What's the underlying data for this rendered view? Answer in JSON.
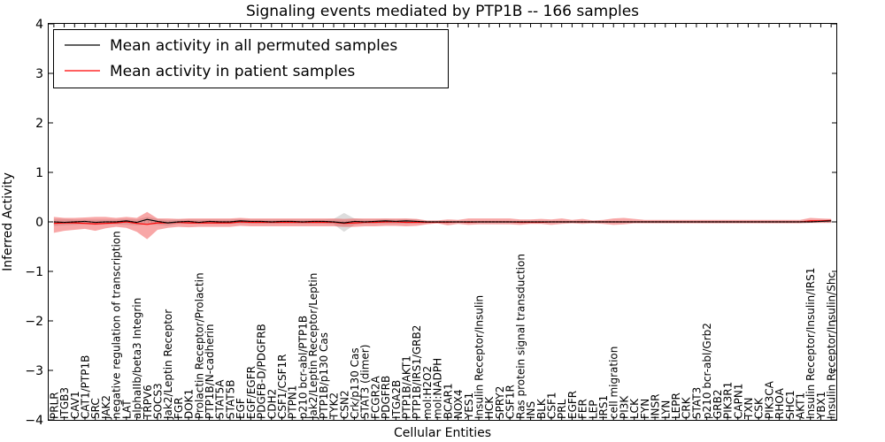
{
  "chart_data": {
    "type": "line",
    "title": "Signaling events mediated by PTP1B -- 166 samples",
    "xlabel": "Cellular Entities",
    "ylabel": "Inferred Activity",
    "ylim": [
      -4,
      4
    ],
    "yticks": [
      -4,
      -3,
      -2,
      -1,
      0,
      1,
      2,
      3,
      4
    ],
    "ytick_labels": [
      "−4",
      "−3",
      "−2",
      "−1",
      "0",
      "1",
      "2",
      "3",
      "4"
    ],
    "legend_location": "top-left",
    "categories": [
      "PRLR",
      "ITGB3",
      "CAV1",
      "CAT1/PTP1B",
      "SRC",
      "JAK2",
      "negative regulation of transcription",
      "LAT",
      "alphaIIb/beta3 Integrin",
      "TRPV6",
      "SOCS3",
      "Jak2/Leptin Receptor",
      "FGR",
      "DOK1",
      "Prolactin Receptor/Prolactin",
      "PTP1B/N-cadherin",
      "STAT5A",
      "STAT5B",
      "EGF",
      "EGF/EGFR",
      "PDGFB-D/PDGFRB",
      "CDH2",
      "CSF1/CSF1R",
      "PTPN1",
      "p210 bcr-abl/PTP1B",
      "Jak2/Leptin Receptor/Leptin",
      "PTP1B/p130 Cas",
      "TYK2",
      "CSN2",
      "Crk/p130 Cas",
      "STAT3 (dimer)",
      "FCGR2A",
      "PDGFRB",
      "ITGA2B",
      "PTP1B/AKT1",
      "PTP1B/IRS1/GRB2",
      "mol:H2O2",
      "mol:NADPH",
      "BCAR1",
      "NOX4",
      "YES1",
      "Insulin Receptor/Insulin",
      "HCK",
      "SPRY2",
      "CSF1R",
      "Ras protein signal transduction",
      "INS",
      "BLK",
      "CSF1",
      "PRL",
      "EGFR",
      "FER",
      "LEP",
      "IRS1",
      "cell migration",
      "PI3K",
      "LCK",
      "FYN",
      "INSR",
      "LYN",
      "LEPR",
      "CRK",
      "STAT3",
      "p210 bcr-abl/Grb2",
      "GRB2",
      "PIK3R1",
      "CAPN1",
      "TXN",
      "CSK",
      "PIK3CA",
      "RHOA",
      "SHC1",
      "AKT1",
      "Insulin Receptor/Insulin/IRS1",
      "YBX1",
      "Insulin Receptor/Insulin/Shc"
    ],
    "series": [
      {
        "name": "Mean activity in all permuted samples",
        "color": "#000000",
        "values": [
          0.0,
          -0.01,
          0.0,
          0.01,
          -0.01,
          0.0,
          0.0,
          0.02,
          -0.01,
          0.05,
          0.01,
          -0.02,
          0.0,
          0.01,
          -0.01,
          0.01,
          0.0,
          0.0,
          0.02,
          0.01,
          0.01,
          0.0,
          0.01,
          0.01,
          0.0,
          0.01,
          0.01,
          0.0,
          -0.02,
          0.01,
          0.0,
          0.01,
          0.02,
          0.01,
          0.02,
          0.01,
          0.0,
          0.0,
          0.0,
          0.0,
          0.0,
          0.0,
          0.0,
          0.0,
          0.0,
          0.0,
          0.0,
          0.0,
          0.0,
          0.0,
          0.0,
          0.0,
          0.0,
          0.0,
          0.0,
          0.0,
          0.0,
          0.0,
          0.0,
          0.0,
          0.0,
          0.0,
          0.0,
          0.0,
          0.0,
          0.0,
          0.0,
          0.0,
          0.0,
          0.0,
          0.0,
          0.0,
          0.0,
          0.0,
          0.01,
          0.02
        ],
        "band_lower": [
          -0.08,
          -0.07,
          -0.06,
          -0.05,
          -0.06,
          -0.05,
          -0.05,
          -0.06,
          -0.07,
          -0.05,
          -0.06,
          -0.08,
          -0.04,
          -0.04,
          -0.04,
          -0.04,
          -0.04,
          -0.04,
          -0.04,
          -0.04,
          -0.04,
          -0.04,
          -0.04,
          -0.04,
          -0.04,
          -0.04,
          -0.04,
          -0.05,
          -0.2,
          -0.06,
          -0.04,
          -0.04,
          -0.04,
          -0.04,
          -0.04,
          -0.03,
          -0.02,
          -0.02,
          -0.02,
          -0.02,
          -0.02,
          -0.02,
          -0.02,
          -0.02,
          -0.02,
          -0.02,
          -0.02,
          -0.02,
          -0.02,
          -0.02,
          -0.02,
          -0.02,
          -0.02,
          -0.02,
          -0.02,
          -0.02,
          -0.02,
          -0.02,
          -0.02,
          -0.02,
          -0.02,
          -0.02,
          -0.02,
          -0.02,
          -0.02,
          -0.02,
          -0.02,
          -0.02,
          -0.02,
          -0.02,
          -0.02,
          -0.02,
          -0.02,
          -0.02,
          -0.02,
          -0.02
        ],
        "band_upper": [
          0.06,
          0.06,
          0.05,
          0.05,
          0.05,
          0.05,
          0.05,
          0.06,
          0.05,
          0.1,
          0.06,
          0.04,
          0.05,
          0.05,
          0.05,
          0.05,
          0.05,
          0.05,
          0.06,
          0.05,
          0.05,
          0.05,
          0.05,
          0.05,
          0.05,
          0.05,
          0.05,
          0.06,
          0.18,
          0.07,
          0.05,
          0.05,
          0.06,
          0.05,
          0.06,
          0.05,
          0.02,
          0.02,
          0.02,
          0.02,
          0.02,
          0.02,
          0.02,
          0.02,
          0.02,
          0.02,
          0.02,
          0.02,
          0.02,
          0.02,
          0.02,
          0.02,
          0.02,
          0.02,
          0.02,
          0.02,
          0.02,
          0.02,
          0.02,
          0.02,
          0.02,
          0.02,
          0.02,
          0.02,
          0.02,
          0.02,
          0.02,
          0.02,
          0.02,
          0.02,
          0.02,
          0.02,
          0.02,
          0.03,
          0.04,
          0.05
        ]
      },
      {
        "name": "Mean activity in patient samples",
        "color": "#ff0000",
        "values": [
          -0.03,
          -0.02,
          -0.02,
          -0.03,
          -0.04,
          -0.03,
          -0.02,
          0.0,
          -0.03,
          -0.05,
          -0.02,
          -0.02,
          -0.01,
          -0.02,
          -0.02,
          -0.02,
          -0.02,
          -0.02,
          0.0,
          -0.01,
          -0.01,
          -0.01,
          -0.01,
          -0.01,
          -0.01,
          -0.01,
          -0.01,
          -0.01,
          -0.03,
          -0.02,
          -0.01,
          -0.01,
          0.0,
          0.0,
          -0.01,
          -0.01,
          -0.01,
          -0.01,
          -0.01,
          0.0,
          -0.01,
          0.0,
          0.0,
          0.0,
          0.0,
          -0.01,
          -0.01,
          -0.01,
          0.0,
          0.0,
          0.0,
          0.0,
          0.0,
          0.0,
          0.0,
          0.0,
          0.0,
          0.0,
          0.0,
          0.0,
          0.0,
          0.0,
          0.0,
          0.0,
          0.0,
          0.0,
          0.0,
          0.0,
          0.0,
          0.0,
          0.0,
          0.0,
          0.0,
          0.02,
          0.02,
          0.03
        ],
        "band_lower": [
          -0.22,
          -0.18,
          -0.16,
          -0.14,
          -0.18,
          -0.13,
          -0.1,
          -0.12,
          -0.2,
          -0.35,
          -0.16,
          -0.12,
          -0.1,
          -0.11,
          -0.1,
          -0.1,
          -0.1,
          -0.1,
          -0.08,
          -0.09,
          -0.09,
          -0.09,
          -0.09,
          -0.09,
          -0.09,
          -0.09,
          -0.09,
          -0.09,
          -0.1,
          -0.1,
          -0.09,
          -0.09,
          -0.08,
          -0.08,
          -0.09,
          -0.08,
          -0.05,
          -0.03,
          -0.07,
          -0.04,
          -0.06,
          -0.05,
          -0.05,
          -0.05,
          -0.05,
          -0.06,
          -0.04,
          -0.04,
          -0.06,
          -0.04,
          -0.03,
          -0.04,
          -0.03,
          -0.04,
          -0.06,
          -0.05,
          -0.03,
          -0.03,
          -0.03,
          -0.03,
          -0.03,
          -0.03,
          -0.03,
          -0.03,
          -0.03,
          -0.03,
          -0.03,
          -0.03,
          -0.03,
          -0.03,
          -0.03,
          -0.03,
          -0.03,
          -0.02,
          -0.02,
          -0.02
        ],
        "band_upper": [
          0.1,
          0.08,
          0.08,
          0.09,
          0.1,
          0.1,
          0.08,
          0.1,
          0.08,
          0.2,
          0.07,
          0.07,
          0.06,
          0.07,
          0.07,
          0.07,
          0.07,
          0.07,
          0.08,
          0.07,
          0.07,
          0.07,
          0.07,
          0.07,
          0.07,
          0.07,
          0.07,
          0.07,
          0.06,
          0.07,
          0.07,
          0.07,
          0.07,
          0.07,
          0.07,
          0.06,
          0.03,
          0.03,
          0.05,
          0.04,
          0.07,
          0.07,
          0.07,
          0.07,
          0.07,
          0.05,
          0.05,
          0.06,
          0.05,
          0.07,
          0.04,
          0.06,
          0.03,
          0.04,
          0.07,
          0.08,
          0.06,
          0.04,
          0.04,
          0.04,
          0.04,
          0.04,
          0.04,
          0.04,
          0.04,
          0.04,
          0.04,
          0.04,
          0.04,
          0.04,
          0.04,
          0.04,
          0.04,
          0.08,
          0.07,
          0.06
        ]
      }
    ]
  }
}
